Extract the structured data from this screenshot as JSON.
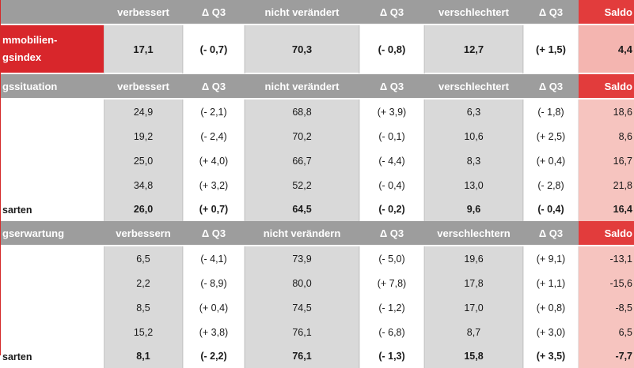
{
  "colors": {
    "header_gray": "#9d9d9d",
    "cell_gray": "#d9d9d9",
    "accent_red": "#d8262b",
    "saldo_header_red": "#e23c3c",
    "saldo_cell_pink": "#f6c4bf"
  },
  "index_header": {
    "label": "",
    "col1": "verbessert",
    "col2": "Δ Q3",
    "col3": "nicht verändert",
    "col4": "Δ Q3",
    "col5": "verschlechtert",
    "col6": "Δ Q3",
    "col7": "Saldo"
  },
  "index_row": {
    "label_line1": "mmobilien-",
    "label_line2": "gsindex",
    "values": [
      "17,1",
      "(- 0,7)",
      "70,3",
      "(- 0,8)",
      "12,7",
      "(+ 1,5)",
      "4,4"
    ]
  },
  "section1": {
    "header": {
      "label": "gssituation",
      "col1": "verbessert",
      "col2": "Δ Q3",
      "col3": "nicht verändert",
      "col4": "Δ Q3",
      "col5": "verschlechtert",
      "col6": "Δ Q3",
      "col7": "Saldo"
    },
    "rows": [
      {
        "label": "",
        "values": [
          "24,9",
          "(- 2,1)",
          "68,8",
          "(+ 3,9)",
          "6,3",
          "(- 1,8)",
          "18,6"
        ]
      },
      {
        "label": "",
        "values": [
          "19,2",
          "(- 2,4)",
          "70,2",
          "(- 0,1)",
          "10,6",
          "(+ 2,5)",
          "8,6"
        ]
      },
      {
        "label": "",
        "values": [
          "25,0",
          "(+ 4,0)",
          "66,7",
          "(- 4,4)",
          "8,3",
          "(+ 0,4)",
          "16,7"
        ]
      },
      {
        "label": "",
        "values": [
          "34,8",
          "(+ 3,2)",
          "52,2",
          "(- 0,4)",
          "13,0",
          "(- 2,8)",
          "21,8"
        ]
      }
    ],
    "total": {
      "label": "sarten",
      "values": [
        "26,0",
        "(+ 0,7)",
        "64,5",
        "(- 0,2)",
        "9,6",
        "(- 0,4)",
        "16,4"
      ]
    }
  },
  "section2": {
    "header": {
      "label": "gserwartung",
      "col1": "verbessern",
      "col2": "Δ Q3",
      "col3": "nicht verändern",
      "col4": "Δ Q3",
      "col5": "verschlechtern",
      "col6": "Δ Q3",
      "col7": "Saldo"
    },
    "rows": [
      {
        "label": "",
        "values": [
          "6,5",
          "(- 4,1)",
          "73,9",
          "(- 5,0)",
          "19,6",
          "(+ 9,1)",
          "-13,1"
        ]
      },
      {
        "label": "",
        "values": [
          "2,2",
          "(- 8,9)",
          "80,0",
          "(+ 7,8)",
          "17,8",
          "(+ 1,1)",
          "-15,6"
        ]
      },
      {
        "label": "",
        "values": [
          "8,5",
          "(+ 0,4)",
          "74,5",
          "(- 1,2)",
          "17,0",
          "(+ 0,8)",
          "-8,5"
        ]
      },
      {
        "label": "",
        "values": [
          "15,2",
          "(+ 3,8)",
          "76,1",
          "(- 6,8)",
          "8,7",
          "(+ 3,0)",
          "6,5"
        ]
      }
    ],
    "total": {
      "label": "sarten",
      "values": [
        "8,1",
        "(- 2,2)",
        "76,1",
        "(- 1,3)",
        "15,8",
        "(+ 3,5)",
        "-7,7"
      ]
    }
  }
}
